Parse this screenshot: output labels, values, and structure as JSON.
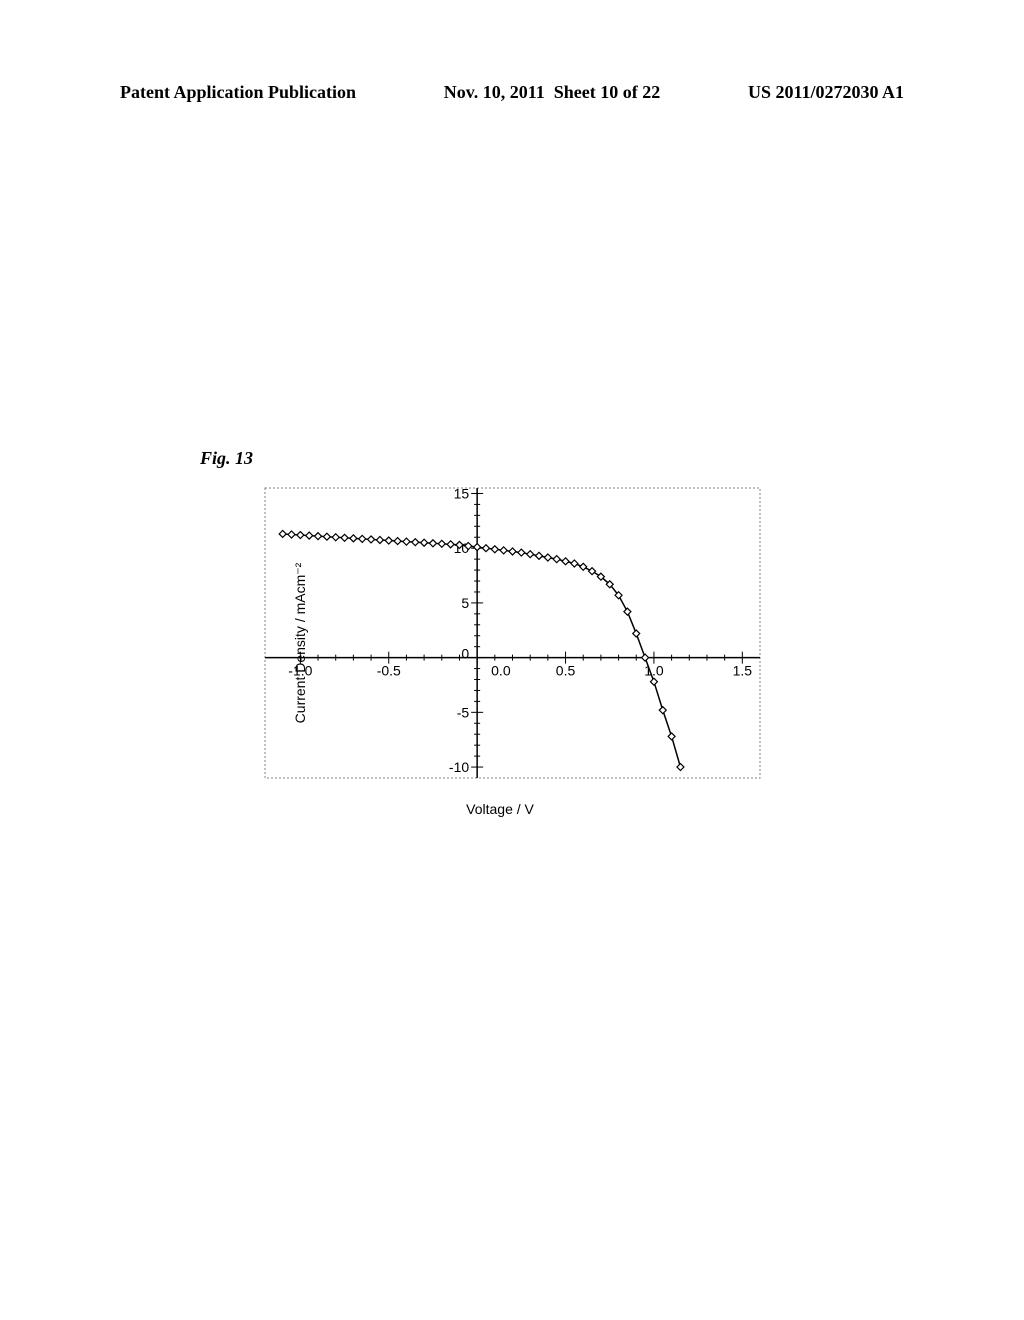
{
  "header": {
    "left": "Patent Application Publication",
    "center": "Nov. 10, 2011  Sheet 10 of 22",
    "right": "US 2011/0272030 A1"
  },
  "figure": {
    "label": "Fig. 13"
  },
  "chart": {
    "type": "line",
    "xlabel": "Voltage / V",
    "ylabel": "Current Density / mAcm⁻²",
    "xlim": [
      -1.2,
      1.6
    ],
    "ylim": [
      -11,
      15.5
    ],
    "x_axis_at_y": 0,
    "y_axis_at_x": 0,
    "x_ticks": [
      -1.0,
      -0.5,
      0.0,
      0.5,
      1.0,
      1.5
    ],
    "y_ticks": [
      -10,
      -5,
      0,
      5,
      10,
      15
    ],
    "x_minor_tick_count": 5,
    "y_minor_tick_count": 5,
    "axis_color": "#000000",
    "border_color": "#808080",
    "background_color": "#ffffff",
    "tick_fontsize": 14,
    "label_fontsize": 14,
    "line_width": 1.5,
    "line_color": "#000000",
    "marker_size": 3.5,
    "marker_fill": "#ffffff",
    "marker_stroke": "#000000",
    "marker_stroke_width": 1.2,
    "data": {
      "x": [
        -1.1,
        -1.05,
        -1.0,
        -0.95,
        -0.9,
        -0.85,
        -0.8,
        -0.75,
        -0.7,
        -0.65,
        -0.6,
        -0.55,
        -0.5,
        -0.45,
        -0.4,
        -0.35,
        -0.3,
        -0.25,
        -0.2,
        -0.15,
        -0.1,
        -0.05,
        0.0,
        0.05,
        0.1,
        0.15,
        0.2,
        0.25,
        0.3,
        0.35,
        0.4,
        0.45,
        0.5,
        0.55,
        0.6,
        0.65,
        0.7,
        0.75,
        0.8,
        0.85,
        0.9,
        0.95,
        1.0,
        1.05,
        1.1,
        1.15
      ],
      "y": [
        11.3,
        11.25,
        11.2,
        11.15,
        11.1,
        11.05,
        11.0,
        10.95,
        10.9,
        10.85,
        10.8,
        10.75,
        10.7,
        10.65,
        10.6,
        10.55,
        10.5,
        10.45,
        10.4,
        10.35,
        10.3,
        10.2,
        10.1,
        10.0,
        9.9,
        9.8,
        9.7,
        9.6,
        9.45,
        9.3,
        9.15,
        9.0,
        8.8,
        8.6,
        8.3,
        7.9,
        7.4,
        6.7,
        5.7,
        4.2,
        2.2,
        0.0,
        -2.2,
        -4.8,
        -7.2,
        -10.0
      ]
    }
  }
}
